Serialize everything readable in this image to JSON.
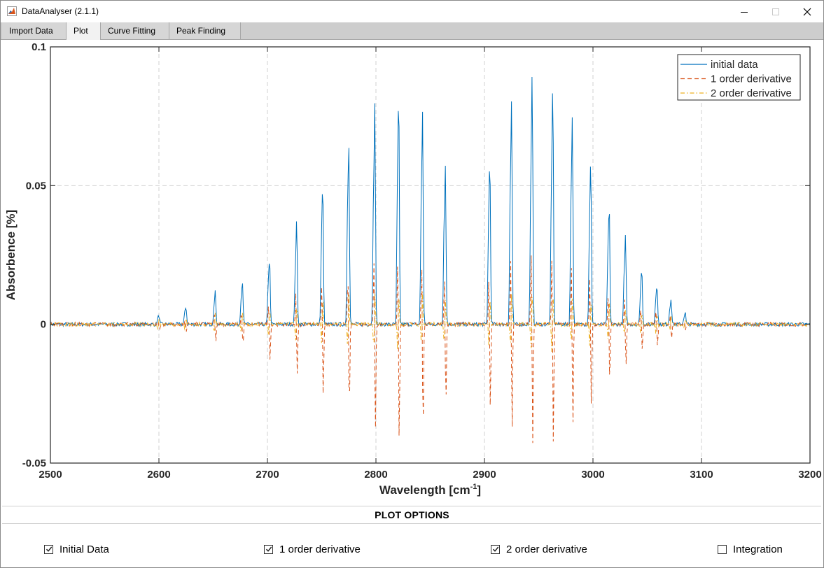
{
  "window": {
    "title": "DataAnalyser (2.1.1)"
  },
  "tabs": [
    {
      "label": "Import Data",
      "active": false
    },
    {
      "label": "Plot",
      "active": true
    },
    {
      "label": "Curve Fitting",
      "active": false
    },
    {
      "label": "Peak Finding",
      "active": false
    }
  ],
  "icons": {
    "app": "matlab-icon",
    "minimize": "minimize-icon",
    "maximize": "maximize-icon",
    "close": "close-icon"
  },
  "chart_data": {
    "type": "line",
    "xlabel": "Wavelength  [cm",
    "xlabel_sup": "-1",
    "xlabel_tail": "]",
    "ylabel": "Absorbence [%]",
    "xlim": [
      2500,
      3200
    ],
    "ylim": [
      -0.05,
      0.1
    ],
    "xticks": [
      "2500",
      "2600",
      "2700",
      "2800",
      "2900",
      "3000",
      "3100",
      "3200"
    ],
    "yticks": [
      "-0.05",
      "0",
      "0.05",
      "0.1"
    ],
    "grid": true,
    "legend_position": "top-right",
    "series": [
      {
        "name": "initial data",
        "color": "#0072BD",
        "dash": "solid"
      },
      {
        "name": "1 order derivative",
        "color": "#D95319",
        "dash": "dashed"
      },
      {
        "name": "2 order derivative",
        "color": "#EDB120",
        "dash": "dash-dot"
      }
    ],
    "peaks": [
      {
        "x": 2600,
        "y": 0.003,
        "d1": -0.002,
        "d2": 0.002
      },
      {
        "x": 2625,
        "y": 0.006,
        "d1": -0.003,
        "d2": 0.003
      },
      {
        "x": 2652,
        "y": 0.011,
        "d1": -0.006,
        "d2": 0.004
      },
      {
        "x": 2677,
        "y": 0.015,
        "d1": -0.008,
        "d2": 0.005
      },
      {
        "x": 2702,
        "y": 0.023,
        "d1": -0.013,
        "d2": 0.006
      },
      {
        "x": 2727,
        "y": 0.035,
        "d1": -0.019,
        "d2": 0.008
      },
      {
        "x": 2751,
        "y": 0.048,
        "d1": -0.027,
        "d2": 0.01
      },
      {
        "x": 2775,
        "y": 0.063,
        "d1": -0.034,
        "d2": 0.011
      },
      {
        "x": 2799,
        "y": 0.075,
        "d1": -0.041,
        "d2": 0.012
      },
      {
        "x": 2821,
        "y": 0.079,
        "d1": -0.043,
        "d2": 0.012
      },
      {
        "x": 2843,
        "y": 0.073,
        "d1": -0.04,
        "d2": 0.012
      },
      {
        "x": 2864,
        "y": 0.055,
        "d1": -0.03,
        "d2": 0.01
      },
      {
        "x": 2905,
        "y": 0.057,
        "d1": -0.031,
        "d2": 0.01
      },
      {
        "x": 2925,
        "y": 0.076,
        "d1": -0.041,
        "d2": 0.012
      },
      {
        "x": 2944,
        "y": 0.085,
        "d1": -0.045,
        "d2": 0.013
      },
      {
        "x": 2963,
        "y": 0.082,
        "d1": -0.044,
        "d2": 0.013
      },
      {
        "x": 2981,
        "y": 0.071,
        "d1": -0.038,
        "d2": 0.011
      },
      {
        "x": 2998,
        "y": 0.056,
        "d1": -0.03,
        "d2": 0.01
      },
      {
        "x": 3015,
        "y": 0.041,
        "d1": -0.022,
        "d2": 0.008
      },
      {
        "x": 3030,
        "y": 0.03,
        "d1": -0.016,
        "d2": 0.006
      },
      {
        "x": 3045,
        "y": 0.019,
        "d1": -0.01,
        "d2": 0.005
      },
      {
        "x": 3059,
        "y": 0.014,
        "d1": -0.008,
        "d2": 0.004
      },
      {
        "x": 3072,
        "y": 0.009,
        "d1": -0.005,
        "d2": 0.003
      },
      {
        "x": 3085,
        "y": 0.004,
        "d1": -0.002,
        "d2": 0.002
      }
    ]
  },
  "options": {
    "title": "PLOT OPTIONS",
    "checkboxes": [
      {
        "label": "Initial Data",
        "checked": true
      },
      {
        "label": "1 order derivative",
        "checked": true
      },
      {
        "label": "2 order derivative",
        "checked": true
      },
      {
        "label": "Integration",
        "checked": false
      }
    ]
  }
}
